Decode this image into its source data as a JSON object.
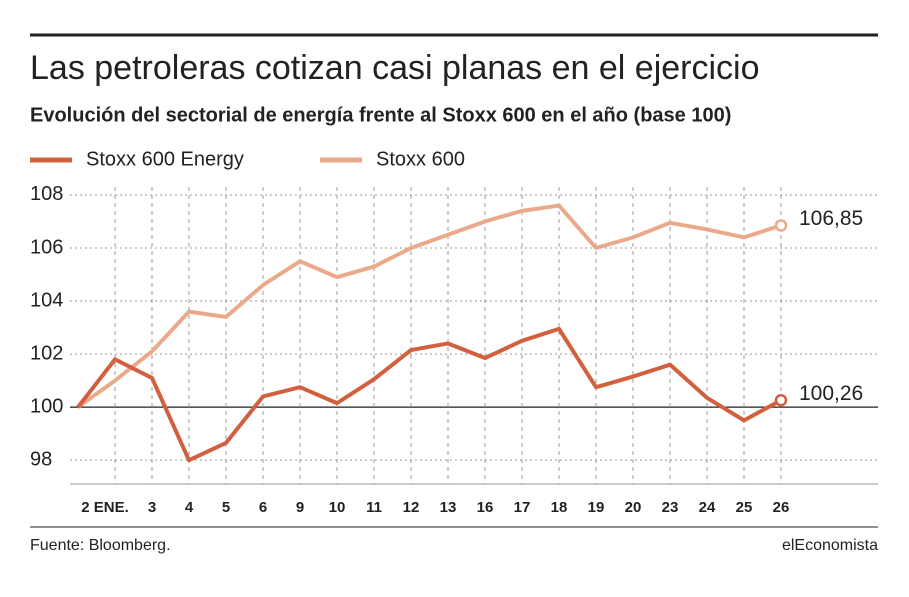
{
  "chart_data": {
    "type": "line",
    "title": "Las petroleras cotizan casi planas en el ejercicio",
    "subtitle": "Evolución del sectorial de energía frente al Stoxx 600 en el año  (base 100)",
    "categories": [
      null,
      "2 ENE.",
      "3",
      "4",
      "5",
      "6",
      "9",
      "10",
      "11",
      "12",
      "13",
      "16",
      "17",
      "18",
      "19",
      "20",
      "23",
      "24",
      "25",
      "26"
    ],
    "series": [
      {
        "name": "Stoxx 600 Energy",
        "color": "#d2603f",
        "values": [
          100,
          101.8,
          101.1,
          98,
          98.65,
          100.4,
          100.75,
          100.15,
          101.05,
          102.15,
          102.4,
          101.85,
          102.5,
          102.95,
          100.75,
          101.15,
          101.6,
          100.35,
          99.5,
          100.26
        ],
        "value_labels": [
          null,
          null,
          null,
          null,
          null,
          null,
          null,
          null,
          null,
          null,
          null,
          null,
          null,
          null,
          null,
          null,
          null,
          null,
          null,
          "100,26"
        ]
      },
      {
        "name": "Stoxx 600",
        "color": "#eaa98b",
        "values": [
          100,
          101,
          102.1,
          103.6,
          103.4,
          104.6,
          105.5,
          104.9,
          105.3,
          106,
          106.5,
          107,
          107.4,
          107.6,
          106,
          106.4,
          106.95,
          106.7,
          106.4,
          106.85
        ],
        "value_labels": [
          null,
          null,
          null,
          null,
          null,
          null,
          null,
          null,
          null,
          null,
          null,
          null,
          null,
          null,
          null,
          null,
          null,
          null,
          null,
          "106,85"
        ]
      }
    ],
    "ylim": [
      97.1,
      108.3
    ],
    "yticks": [
      98,
      100,
      102,
      104,
      106,
      108
    ],
    "grid": true,
    "source": "Fuente: Bloomberg.",
    "brand": "elEconomista"
  }
}
